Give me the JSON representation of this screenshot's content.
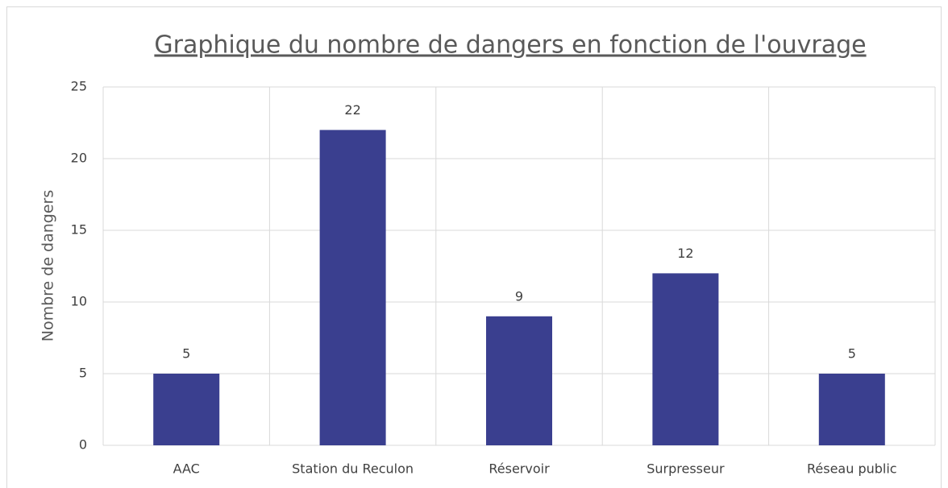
{
  "chart_data": {
    "type": "bar",
    "title": "Graphique du nombre de dangers en fonction de l'ouvrage",
    "y_label": "Nombre de dangers",
    "categories": [
      "AAC",
      "Station du Reculon",
      "Réservoir",
      "Surpresseur",
      "Réseau public"
    ],
    "values": [
      5,
      22,
      9,
      12,
      5
    ],
    "color": "#3a3f8f",
    "ylim": [
      0,
      25
    ],
    "yticks": [
      0,
      5,
      10,
      15,
      20,
      25
    ],
    "grid": true
  }
}
